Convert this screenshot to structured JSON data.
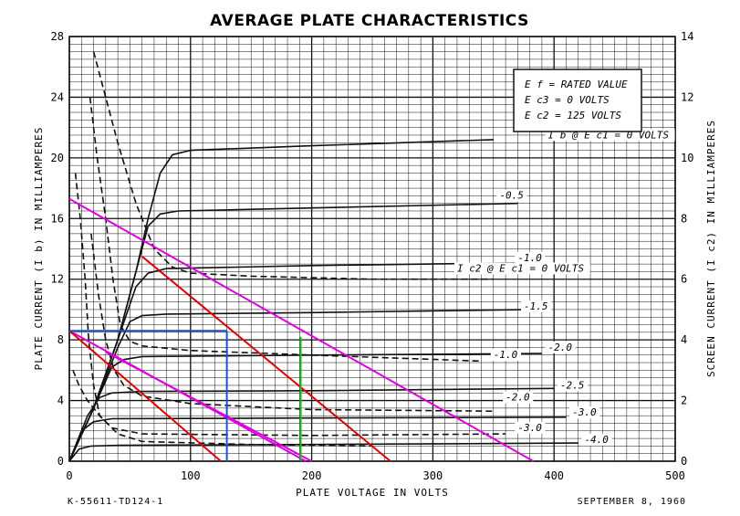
{
  "chart_data": {
    "type": "line",
    "title": "AVERAGE PLATE CHARACTERISTICS",
    "xlabel": "PLATE VOLTAGE IN VOLTS",
    "ylabel_left": "PLATE CURRENT (I b) IN MILLIAMPERES",
    "ylabel_right": "SCREEN CURRENT (I c2) IN MILLIAMPERES",
    "xlim": [
      0,
      500
    ],
    "ylim_left": [
      0,
      28
    ],
    "ylim_right": [
      0,
      14
    ],
    "x_ticks": [
      "0",
      "100",
      "200",
      "300",
      "400",
      "500"
    ],
    "y_ticks_left": [
      "0",
      "4",
      "8",
      "12",
      "16",
      "20",
      "24",
      "28"
    ],
    "y_ticks_right": [
      "0",
      "2",
      "4",
      "6",
      "8",
      "10",
      "12",
      "14"
    ],
    "grid": true,
    "conditions": [
      "E f = RATED VALUE",
      "E c3 = 0 VOLTS",
      "E c2 = 125 VOLTS"
    ],
    "plate_curves": [
      {
        "label": "I b @ E c1 = 0 VOLTS",
        "label_at": [
          395,
          21.3
        ],
        "points": [
          [
            0,
            0
          ],
          [
            20,
            3.5
          ],
          [
            40,
            8
          ],
          [
            55,
            12.5
          ],
          [
            65,
            16
          ],
          [
            75,
            19
          ],
          [
            85,
            20.2
          ],
          [
            100,
            20.5
          ],
          [
            200,
            20.8
          ],
          [
            350,
            21.2
          ]
        ]
      },
      {
        "label": "-0.5",
        "label_at": [
          355,
          17.3
        ],
        "points": [
          [
            0,
            0
          ],
          [
            20,
            3.5
          ],
          [
            40,
            8
          ],
          [
            55,
            12.5
          ],
          [
            65,
            15.5
          ],
          [
            75,
            16.3
          ],
          [
            90,
            16.5
          ],
          [
            200,
            16.7
          ],
          [
            370,
            17.0
          ]
        ]
      },
      {
        "label": "-1.0",
        "label_at": [
          370,
          13.2
        ],
        "points": [
          [
            0,
            0
          ],
          [
            20,
            3.5
          ],
          [
            40,
            8
          ],
          [
            55,
            11.5
          ],
          [
            65,
            12.4
          ],
          [
            80,
            12.7
          ],
          [
            200,
            12.9
          ],
          [
            390,
            13.1
          ]
        ]
      },
      {
        "label": "-1.5",
        "label_at": [
          375,
          10.0
        ],
        "points": [
          [
            0,
            0
          ],
          [
            20,
            3.5
          ],
          [
            40,
            7.5
          ],
          [
            50,
            9.2
          ],
          [
            60,
            9.6
          ],
          [
            80,
            9.7
          ],
          [
            200,
            9.8
          ],
          [
            380,
            10.0
          ]
        ]
      },
      {
        "label": "-2.0",
        "label_at": [
          395,
          7.3
        ],
        "points": [
          [
            0,
            0
          ],
          [
            20,
            3.5
          ],
          [
            35,
            6.2
          ],
          [
            45,
            6.7
          ],
          [
            60,
            6.9
          ],
          [
            200,
            7.0
          ],
          [
            390,
            7.1
          ]
        ]
      },
      {
        "label": "-2.5",
        "label_at": [
          405,
          4.8
        ],
        "points": [
          [
            0,
            0
          ],
          [
            15,
            3
          ],
          [
            25,
            4.2
          ],
          [
            35,
            4.5
          ],
          [
            60,
            4.6
          ],
          [
            200,
            4.65
          ],
          [
            400,
            4.8
          ]
        ]
      },
      {
        "label": "-3.0",
        "label_at": [
          415,
          3.0
        ],
        "points": [
          [
            0,
            0
          ],
          [
            10,
            2
          ],
          [
            20,
            2.6
          ],
          [
            35,
            2.8
          ],
          [
            200,
            2.85
          ],
          [
            410,
            2.9
          ]
        ]
      },
      {
        "label": "-4.0",
        "label_at": [
          425,
          1.2
        ],
        "points": [
          [
            0,
            0
          ],
          [
            8,
            0.8
          ],
          [
            18,
            1.0
          ],
          [
            40,
            1.05
          ],
          [
            200,
            1.1
          ],
          [
            420,
            1.2
          ]
        ]
      }
    ],
    "screen_curves": [
      {
        "label": "I c2 @ E c1 = 0 VOLTS",
        "label_at": [
          320,
          12.5
        ],
        "points": [
          [
            20,
            27
          ],
          [
            30,
            24
          ],
          [
            40,
            21
          ],
          [
            55,
            17
          ],
          [
            70,
            14
          ],
          [
            85,
            12.8
          ],
          [
            100,
            12.4
          ],
          [
            150,
            12.2
          ],
          [
            250,
            12.0
          ],
          [
            350,
            12.0
          ]
        ]
      },
      {
        "label": "-1.0",
        "label_at": [
          350,
          6.8
        ],
        "points": [
          [
            17,
            24
          ],
          [
            23,
            20
          ],
          [
            30,
            16
          ],
          [
            36,
            12
          ],
          [
            42,
            9
          ],
          [
            50,
            7.9
          ],
          [
            60,
            7.6
          ],
          [
            100,
            7.3
          ],
          [
            200,
            7.0
          ],
          [
            340,
            6.6
          ]
        ]
      },
      {
        "label": "-2.0",
        "label_at": [
          360,
          4.0
        ],
        "points": [
          [
            18,
            15
          ],
          [
            24,
            11
          ],
          [
            30,
            8
          ],
          [
            37,
            6
          ],
          [
            45,
            5
          ],
          [
            60,
            4.3
          ],
          [
            100,
            3.8
          ],
          [
            200,
            3.4
          ],
          [
            350,
            3.3
          ]
        ]
      },
      {
        "label": "-3.0",
        "label_at": [
          370,
          2.0
        ],
        "points": [
          [
            5,
            19
          ],
          [
            9,
            16
          ],
          [
            13,
            12
          ],
          [
            16,
            8
          ],
          [
            20,
            5
          ],
          [
            25,
            3
          ],
          [
            35,
            2.2
          ],
          [
            60,
            1.8
          ],
          [
            200,
            1.7
          ],
          [
            360,
            1.8
          ]
        ]
      },
      {
        "label": "",
        "label_at": [
          0,
          0
        ],
        "points": [
          [
            3,
            6
          ],
          [
            8,
            5
          ],
          [
            15,
            4
          ],
          [
            25,
            3
          ],
          [
            40,
            1.8
          ],
          [
            60,
            1.3
          ],
          [
            150,
            1.1
          ],
          [
            250,
            1.0
          ]
        ]
      }
    ],
    "overlay_lines": [
      {
        "color": "#e000e0",
        "points": [
          [
            0,
            17.3
          ],
          [
            383,
            0
          ]
        ]
      },
      {
        "color": "#e000e0",
        "points": [
          [
            0,
            8.6
          ],
          [
            195,
            0
          ]
        ]
      },
      {
        "color": "#e000e0",
        "points": [
          [
            30,
            7.2
          ],
          [
            200,
            0
          ]
        ]
      },
      {
        "color": "#e00000",
        "points": [
          [
            60,
            13.5
          ],
          [
            265,
            0
          ]
        ]
      },
      {
        "color": "#e00000",
        "points": [
          [
            0,
            8.6
          ],
          [
            125,
            0
          ]
        ]
      },
      {
        "color": "#1e50d0",
        "points": [
          [
            0,
            8.6
          ],
          [
            130,
            8.6
          ]
        ]
      },
      {
        "color": "#1e50d0",
        "points": [
          [
            130,
            8.6
          ],
          [
            130,
            0
          ]
        ]
      },
      {
        "color": "#20c020",
        "points": [
          [
            191,
            8.2
          ],
          [
            191,
            0
          ]
        ]
      }
    ],
    "footer_left": "K-55611-TD124-1",
    "footer_right": "SEPTEMBER 8, 1960"
  }
}
